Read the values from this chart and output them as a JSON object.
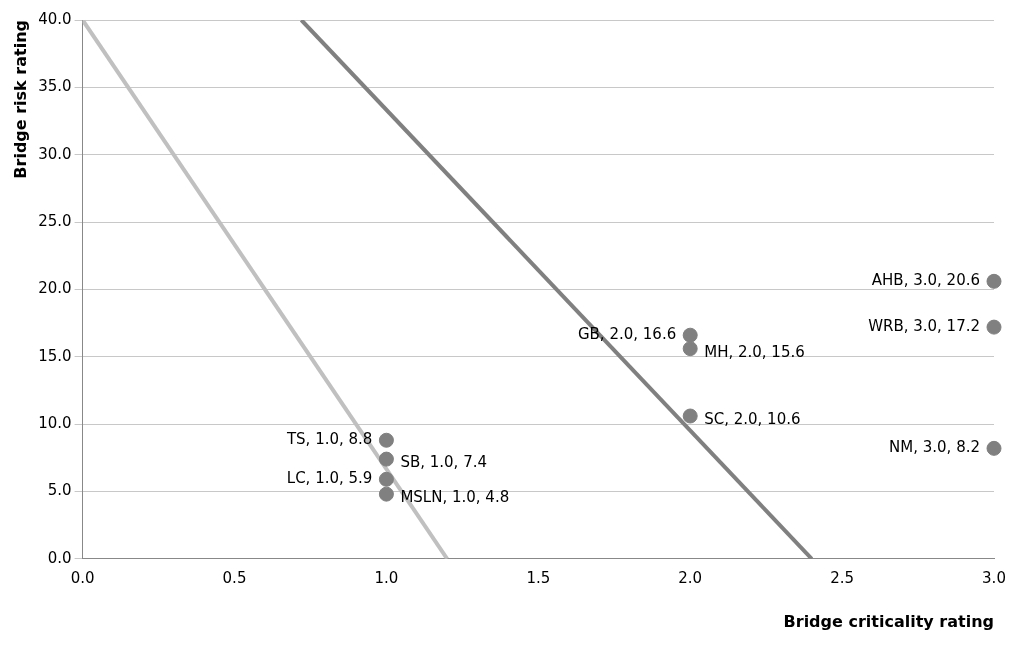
{
  "chart_data": {
    "type": "scatter",
    "xlabel": "Bridge criticality rating",
    "ylabel": "Bridge risk rating",
    "xlim": [
      0,
      3
    ],
    "xticks": [
      {
        "value": 0,
        "label": "0.0"
      },
      {
        "value": 0.5,
        "label": "0.5"
      },
      {
        "value": 1,
        "label": "1.0"
      },
      {
        "value": 1.5,
        "label": "1.5"
      },
      {
        "value": 2,
        "label": "2.0"
      },
      {
        "value": 2.5,
        "label": "2.5"
      },
      {
        "value": 3,
        "label": "3.0"
      }
    ],
    "ylim": [
      0,
      40
    ],
    "yticks": [
      {
        "value": 0,
        "label": "0.0"
      },
      {
        "value": 5,
        "label": "5.0"
      },
      {
        "value": 10,
        "label": "10.0"
      },
      {
        "value": 15,
        "label": "15.0"
      },
      {
        "value": 20,
        "label": "20.0"
      },
      {
        "value": 25,
        "label": "25.0"
      },
      {
        "value": 30,
        "label": "30.0"
      },
      {
        "value": 35,
        "label": "35.0"
      },
      {
        "value": 40,
        "label": "40.0"
      }
    ],
    "grid": "y",
    "series": [
      {
        "type": "scatter",
        "marker": "circle",
        "color": "#808080",
        "x": [
          1,
          1,
          1,
          1,
          2,
          2,
          2,
          3,
          3,
          3
        ],
        "values": [
          8.8,
          7.4,
          5.9,
          4.8,
          16.6,
          15.6,
          10.6,
          20.6,
          17.2,
          8.2
        ],
        "value_labels": [
          "TS, 1.0, 8.8",
          "SB, 1.0, 7.4",
          "LC, 1.0, 5.9",
          "MSLN, 1.0, 4.8",
          "GB, 2.0, 16.6",
          "MH, 2.0, 15.6",
          "SC, 2.0, 10.6",
          "AHB, 3.0, 20.6",
          "WRB, 3.0, 17.2",
          "NM, 3.0, 8.2"
        ]
      },
      {
        "type": "line",
        "marker": "none",
        "color": "#c0c0c0",
        "x": [
          0,
          1.2
        ],
        "values": [
          40,
          0
        ]
      },
      {
        "type": "line",
        "marker": "none",
        "color": "#808080",
        "x": [
          0.72,
          2.4
        ],
        "values": [
          40,
          0
        ]
      }
    ]
  }
}
